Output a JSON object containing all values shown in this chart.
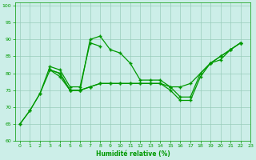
{
  "xlabel": "Humidité relative (%)",
  "xlim": [
    -0.5,
    23
  ],
  "ylim": [
    60,
    101
  ],
  "yticks": [
    60,
    65,
    70,
    75,
    80,
    85,
    90,
    95,
    100
  ],
  "xticks": [
    0,
    1,
    2,
    3,
    4,
    5,
    6,
    7,
    8,
    9,
    10,
    11,
    12,
    13,
    14,
    15,
    16,
    17,
    18,
    19,
    20,
    21,
    22,
    23
  ],
  "bg_color": "#cceee8",
  "line_color": "#009900",
  "grid_color": "#99ccbb",
  "font_color": "#009900",
  "marker_style": "+",
  "lines": {
    "x1": [
      0,
      1,
      2,
      3,
      4,
      5,
      6,
      7,
      8,
      9,
      10,
      11,
      12,
      13,
      14,
      15,
      16,
      17,
      18,
      19,
      20,
      21,
      22
    ],
    "y1": [
      65,
      69,
      74,
      81,
      80,
      75,
      75,
      90,
      91,
      87,
      86,
      83,
      78,
      78,
      78,
      76,
      73,
      73,
      80,
      83,
      84,
      87,
      89
    ],
    "x2": [
      0,
      1,
      2,
      3,
      4,
      5,
      6,
      7,
      8
    ],
    "y2": [
      65,
      69,
      74,
      82,
      81,
      76,
      76,
      89,
      88
    ],
    "x3": [
      3,
      4,
      5,
      6,
      7,
      8,
      9,
      10,
      11,
      12,
      13,
      14,
      15,
      16,
      17,
      18,
      19,
      20,
      21,
      22
    ],
    "y3": [
      81,
      80,
      75,
      75,
      76,
      77,
      77,
      77,
      77,
      77,
      77,
      77,
      76,
      76,
      77,
      80,
      83,
      85,
      87,
      89
    ],
    "x4": [
      3,
      4,
      5,
      6,
      7,
      8,
      9,
      10,
      11,
      12,
      13,
      14,
      15,
      16,
      17,
      18,
      19,
      20,
      21,
      22
    ],
    "y4": [
      81,
      79,
      75,
      75,
      76,
      77,
      77,
      77,
      77,
      77,
      77,
      77,
      75,
      72,
      72,
      79,
      83,
      85,
      87,
      89
    ]
  }
}
